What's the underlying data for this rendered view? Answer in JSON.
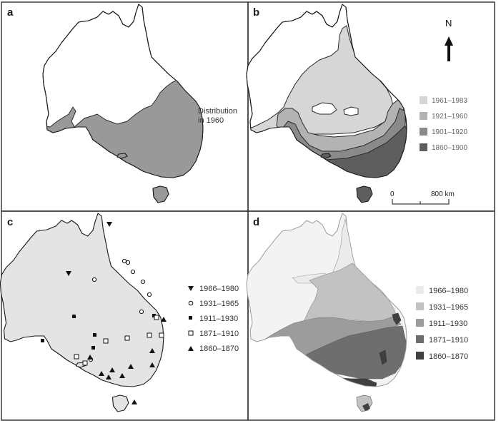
{
  "panels": [
    {
      "letter": "a"
    },
    {
      "letter": "b"
    },
    {
      "letter": "c"
    },
    {
      "letter": "d"
    }
  ],
  "panel_a": {
    "legend": {
      "line1": "Distribution",
      "line2": "in 1960",
      "color": "#999999"
    }
  },
  "panel_b": {
    "north_label": "N",
    "scale": {
      "zero": "0",
      "end": "800 km"
    },
    "legend": [
      {
        "label": "1961–1983",
        "color": "#d6d6d6"
      },
      {
        "label": "1921–1960",
        "color": "#b3b3b3"
      },
      {
        "label": "1901–1920",
        "color": "#8a8a8a"
      },
      {
        "label": "1860–1900",
        "color": "#5e5e5e"
      }
    ]
  },
  "panel_c": {
    "legend": [
      {
        "label": "1966–1980",
        "marker": "triangle-down-filled"
      },
      {
        "label": "1931–1965",
        "marker": "circle-open"
      },
      {
        "label": "1911–1930",
        "marker": "square-filled"
      },
      {
        "label": "1871–1910",
        "marker": "square-open"
      },
      {
        "label": "1860–1870",
        "marker": "triangle-up-filled"
      }
    ]
  },
  "panel_d": {
    "legend": [
      {
        "label": "1966–1980",
        "color": "#ebebeb"
      },
      {
        "label": "1931–1965",
        "color": "#c2c2c2"
      },
      {
        "label": "1911–1930",
        "color": "#9c9c9c"
      },
      {
        "label": "1871–1910",
        "color": "#6e6e6e"
      },
      {
        "label": "1860–1870",
        "color": "#404040"
      }
    ]
  }
}
